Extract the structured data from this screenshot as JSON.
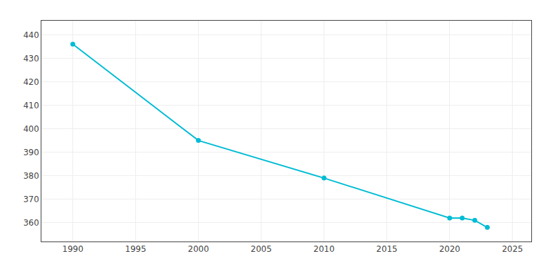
{
  "chart_data": {
    "type": "line",
    "x": [
      1990,
      2000,
      2010,
      2020,
      2021,
      2022,
      2023
    ],
    "values": [
      436,
      395,
      379,
      362,
      362,
      361,
      358
    ],
    "color": "#00BCD4",
    "marker": "circle",
    "xlim": [
      1987.5,
      2026.5
    ],
    "xticks": [
      1990,
      1995,
      2000,
      2005,
      2010,
      2015,
      2020,
      2025
    ],
    "ylim": [
      352,
      446
    ],
    "yticks": [
      360,
      370,
      380,
      390,
      400,
      410,
      420,
      430,
      440
    ],
    "grid": true
  }
}
